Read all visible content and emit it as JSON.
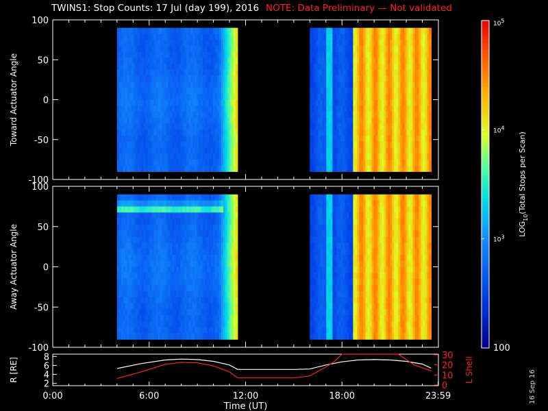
{
  "header": {
    "title": "TWINS1: Stop Counts: 17 Jul (day 199), 2016",
    "note": "NOTE: Data Preliminary — Not validated"
  },
  "stamp": "16 Sep 16",
  "colors": {
    "background": "#000000",
    "axis": "#ffffff",
    "ephem_line": "#ff2020"
  },
  "chart_data": [
    {
      "type": "heatmap",
      "panel": "toward",
      "ylabel": "Toward Actuator Angle",
      "ylim": [
        -100,
        100
      ],
      "yticks": [
        "100",
        "50",
        "0",
        "-50",
        "-100"
      ],
      "xlim_hours": [
        0,
        24
      ],
      "data_segments_hours": [
        [
          4.0,
          11.5
        ],
        [
          16.0,
          23.55
        ]
      ],
      "description_levels": "log10 stop counts ~2.7–3.0 (blue) before 10.6 h, rising to ~4.5 (orange) near 11.4 h; second segment ~2.7 until 18.7 h then ~4.3–4.6",
      "cbar": {
        "label": "LOG10(Total Stops per Scan)",
        "range_log": [
          2,
          5
        ],
        "ticks": [
          "10^5",
          "10^4",
          "10^3",
          "100"
        ]
      }
    },
    {
      "type": "heatmap",
      "panel": "away",
      "ylabel": "Away Actuator Angle",
      "ylim": [
        -100,
        100
      ],
      "yticks": [
        "100",
        "50",
        "0",
        "-50",
        "-100"
      ],
      "xlim_hours": [
        0,
        24
      ],
      "data_segments_hours": [
        [
          4.0,
          11.5
        ],
        [
          16.0,
          23.55
        ]
      ],
      "feature": "enhanced band near +72 deg (cyan/yellow) during 4.0–10.5 h"
    },
    {
      "type": "line",
      "panel": "ephemeris",
      "ylabel_left": "R [RE]",
      "ylabel_right": "L Shell",
      "ylim_left": [
        2,
        8
      ],
      "ylim_right": [
        0,
        30
      ],
      "yticks_left": [
        "8",
        "6",
        "4",
        "2"
      ],
      "yticks_right": [
        "30",
        "20",
        "10",
        "0"
      ],
      "xlabel": "Time (UT)",
      "xticks": [
        "0:00",
        "6:00",
        "12:00",
        "18:00",
        "23:59"
      ],
      "series": [
        {
          "name": "R",
          "x": [
            4.0,
            5.5,
            7.0,
            8.0,
            9.0,
            10.0,
            11.0,
            11.5,
            13.0,
            15.0,
            16.0,
            17.0,
            18.0,
            19.0,
            20.0,
            21.0,
            22.0,
            23.0,
            23.55
          ],
          "y": [
            5.3,
            6.4,
            7.2,
            7.4,
            7.3,
            6.9,
            6.1,
            5.1,
            5.1,
            5.1,
            5.2,
            6.1,
            6.8,
            7.2,
            7.3,
            7.2,
            6.9,
            6.3,
            5.4
          ]
        },
        {
          "name": "L",
          "x": [
            4.0,
            5.5,
            7.0,
            8.0,
            9.0,
            10.0,
            11.0,
            11.5,
            13.0,
            15.0,
            16.0,
            17.0,
            17.5,
            18.0,
            21.5,
            22.5,
            23.55
          ],
          "y": [
            6.5,
            13.0,
            20.5,
            22.5,
            22.0,
            19.0,
            13.0,
            7.0,
            7.0,
            7.0,
            9.0,
            18.0,
            23.0,
            31.0,
            31.0,
            20.0,
            14.0
          ]
        }
      ]
    }
  ]
}
